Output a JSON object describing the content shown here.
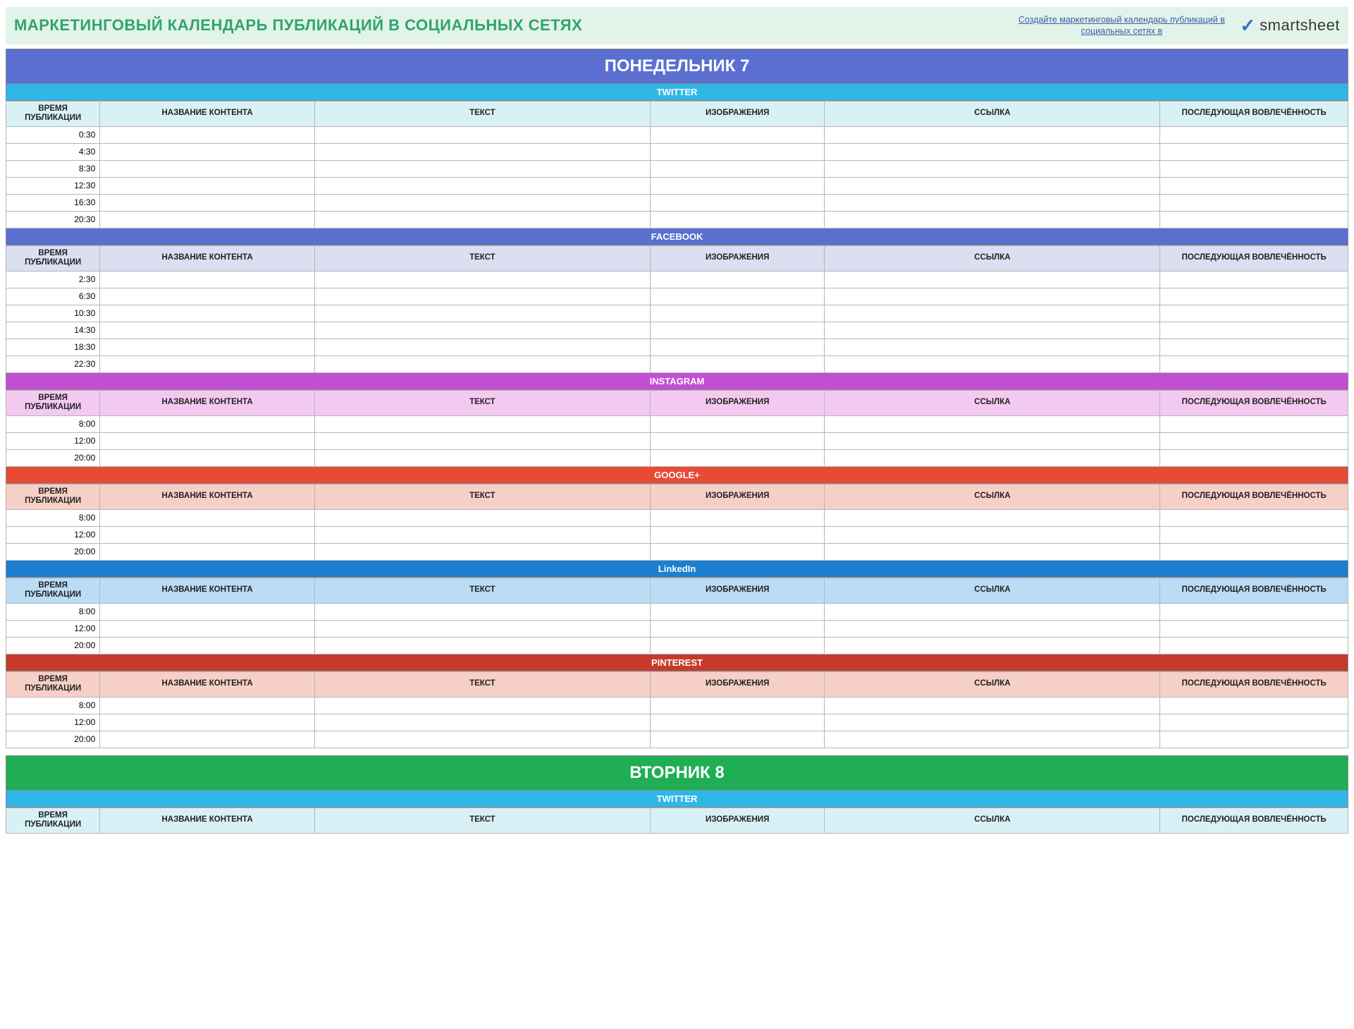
{
  "header": {
    "title": "МАРКЕТИНГОВЫЙ КАЛЕНДАРЬ ПУБЛИКАЦИЙ В СОЦИАЛЬНЫХ СЕТЯХ",
    "link_text": "Создайте маркетинговый календарь публикаций в социальных сетях в",
    "logo_text": "smartsheet",
    "background_color": "#e2f3ea",
    "title_color": "#2fa56a",
    "link_color": "#3a5fa0"
  },
  "columns": {
    "time": "ВРЕМЯ ПУБЛИКАЦИИ",
    "content_title": "НАЗВАНИЕ КОНТЕНТА",
    "text": "ТЕКСТ",
    "images": "ИЗОБРАЖЕНИЯ",
    "link": "ССЫЛКА",
    "engagement": "ПОСЛЕДУЮЩАЯ ВОВЛЕЧЁННОСТЬ"
  },
  "day_header_font_size": 24,
  "days": [
    {
      "label": "ПОНЕДЕЛЬНИК   7",
      "header_bg": "#5a6fd0",
      "sections": [
        {
          "name": "TWITTER",
          "header_bg": "#2fb7e7",
          "column_bg": "#d8f1f7",
          "times": [
            "0:30",
            "4:30",
            "8:30",
            "12:30",
            "16:30",
            "20:30"
          ]
        },
        {
          "name": "FACEBOOK",
          "header_bg": "#5a6fd0",
          "column_bg": "#dadff2",
          "times": [
            "2:30",
            "6:30",
            "10:30",
            "14:30",
            "18:30",
            "22:30"
          ]
        },
        {
          "name": "INSTAGRAM",
          "header_bg": "#c24fd1",
          "column_bg": "#f3c9f1",
          "times": [
            "8:00",
            "12:00",
            "20:00"
          ]
        },
        {
          "name": "GOOGLE+",
          "header_bg": "#e84a33",
          "column_bg": "#f6cfc6",
          "times": [
            "8:00",
            "12:00",
            "20:00"
          ]
        },
        {
          "name": "LinkedIn",
          "header_bg": "#1c7ed1",
          "column_bg": "#bbdcf5",
          "times": [
            "8:00",
            "12:00",
            "20:00"
          ]
        },
        {
          "name": "PINTEREST",
          "header_bg": "#c73a2a",
          "column_bg": "#f6cfc6",
          "times": [
            "8:00",
            "12:00",
            "20:00"
          ]
        }
      ]
    },
    {
      "label": "ВТОРНИК   8",
      "header_bg": "#1fae54",
      "sections": [
        {
          "name": "TWITTER",
          "header_bg": "#2fb7e7",
          "column_bg": "#d8f1f7",
          "times": []
        }
      ]
    }
  ]
}
